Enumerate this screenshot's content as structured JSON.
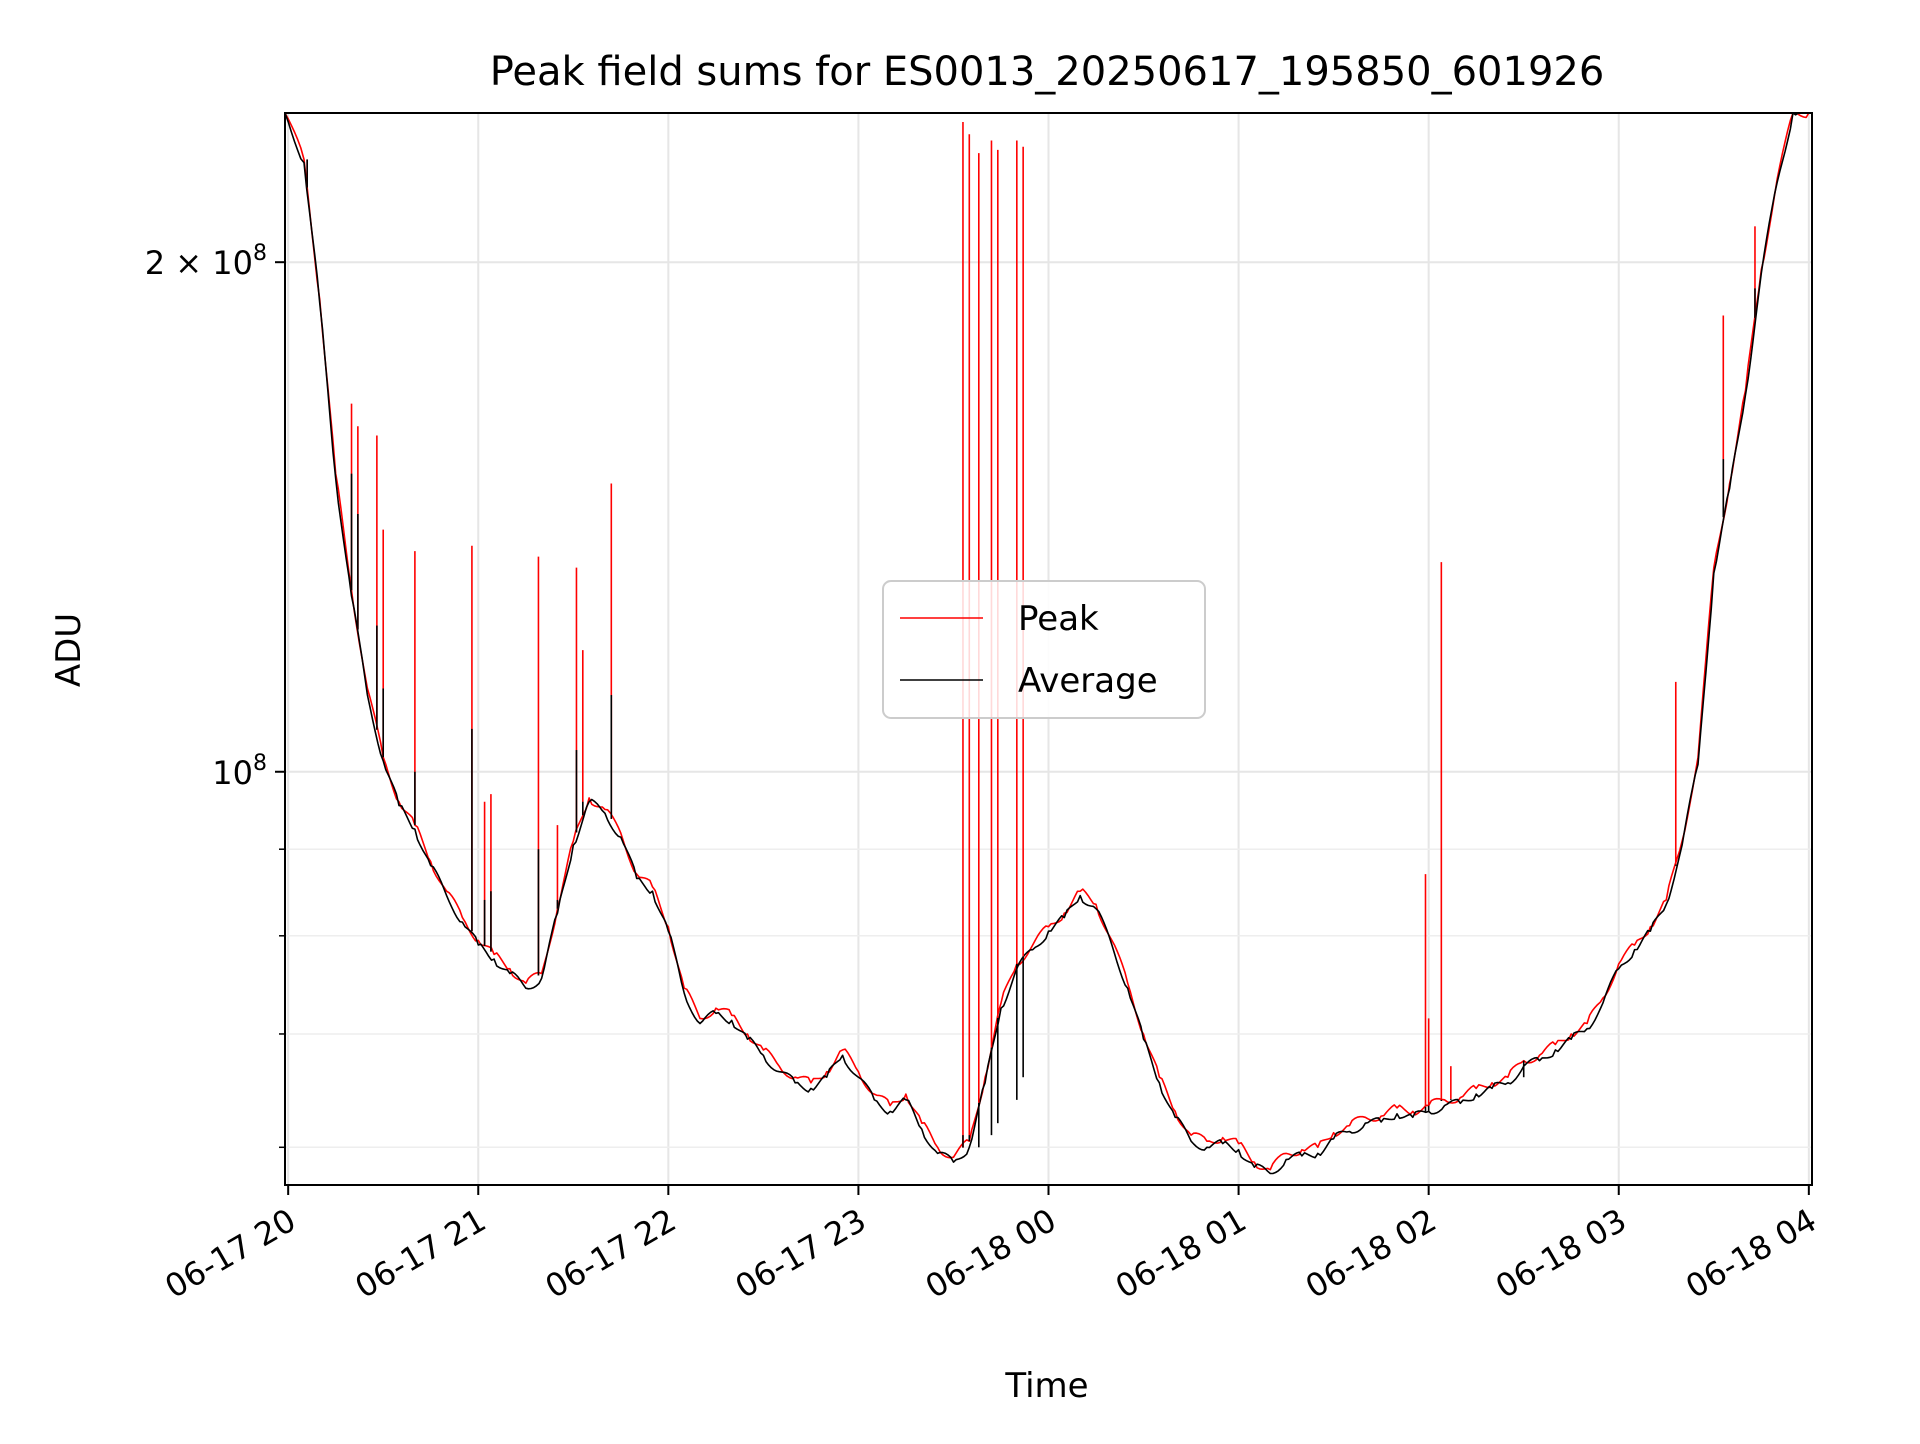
{
  "chart_data": {
    "type": "line",
    "title": "Peak field sums for ES0013_20250617_195850_601926",
    "xlabel": "Time",
    "ylabel": "ADU",
    "y_scale": "log",
    "ylim": [
      57000000,
      245000000
    ],
    "y_major_ticks": [
      {
        "value": 100000000,
        "label": "10",
        "exp": "8"
      },
      {
        "value": 200000000,
        "label": "2 × 10",
        "exp": "8"
      }
    ],
    "y_minor_ticks": [
      60000000,
      70000000,
      80000000,
      90000000
    ],
    "xlim": [
      "2025-06-17 19:59",
      "2025-06-18 04:01"
    ],
    "x_ticks": [
      {
        "value": "2025-06-17 20:00",
        "label": "06-17 20"
      },
      {
        "value": "2025-06-17 21:00",
        "label": "06-17 21"
      },
      {
        "value": "2025-06-17 22:00",
        "label": "06-17 22"
      },
      {
        "value": "2025-06-17 23:00",
        "label": "06-17 23"
      },
      {
        "value": "2025-06-18 00:00",
        "label": "06-18 00"
      },
      {
        "value": "2025-06-18 01:00",
        "label": "06-18 01"
      },
      {
        "value": "2025-06-18 02:00",
        "label": "06-18 02"
      },
      {
        "value": "2025-06-18 03:00",
        "label": "06-18 03"
      },
      {
        "value": "2025-06-18 04:00",
        "label": "06-18 04"
      }
    ],
    "grid": true,
    "legend_position": "center",
    "series": [
      {
        "name": "Peak",
        "color": "#ff0000",
        "x": [
          "2025-06-17 19:59",
          "2025-06-17 20:05",
          "2025-06-17 20:10",
          "2025-06-17 20:15",
          "2025-06-17 20:20",
          "2025-06-17 20:25",
          "2025-06-17 20:30",
          "2025-06-17 20:35",
          "2025-06-17 20:40",
          "2025-06-17 20:45",
          "2025-06-17 20:50",
          "2025-06-17 20:55",
          "2025-06-17 21:00",
          "2025-06-17 21:05",
          "2025-06-17 21:10",
          "2025-06-17 21:15",
          "2025-06-17 21:20",
          "2025-06-17 21:25",
          "2025-06-17 21:30",
          "2025-06-17 21:35",
          "2025-06-17 21:40",
          "2025-06-17 21:45",
          "2025-06-17 21:50",
          "2025-06-17 21:55",
          "2025-06-17 22:00",
          "2025-06-17 22:05",
          "2025-06-17 22:10",
          "2025-06-17 22:15",
          "2025-06-17 22:20",
          "2025-06-17 22:25",
          "2025-06-17 22:30",
          "2025-06-17 22:35",
          "2025-06-17 22:40",
          "2025-06-17 22:45",
          "2025-06-17 22:50",
          "2025-06-17 22:55",
          "2025-06-17 23:00",
          "2025-06-17 23:05",
          "2025-06-17 23:10",
          "2025-06-17 23:15",
          "2025-06-17 23:20",
          "2025-06-17 23:25",
          "2025-06-17 23:30",
          "2025-06-17 23:35",
          "2025-06-17 23:40",
          "2025-06-17 23:45",
          "2025-06-17 23:50",
          "2025-06-17 23:55",
          "2025-06-18 00:00",
          "2025-06-18 00:05",
          "2025-06-18 00:10",
          "2025-06-18 00:15",
          "2025-06-18 00:20",
          "2025-06-18 00:25",
          "2025-06-18 00:30",
          "2025-06-18 00:35",
          "2025-06-18 00:40",
          "2025-06-18 00:45",
          "2025-06-18 00:50",
          "2025-06-18 00:55",
          "2025-06-18 01:00",
          "2025-06-18 01:05",
          "2025-06-18 01:10",
          "2025-06-18 01:15",
          "2025-06-18 01:20",
          "2025-06-18 01:25",
          "2025-06-18 01:30",
          "2025-06-18 01:35",
          "2025-06-18 01:40",
          "2025-06-18 01:45",
          "2025-06-18 01:50",
          "2025-06-18 01:55",
          "2025-06-18 02:00",
          "2025-06-18 02:05",
          "2025-06-18 02:10",
          "2025-06-18 02:15",
          "2025-06-18 02:20",
          "2025-06-18 02:25",
          "2025-06-18 02:30",
          "2025-06-18 02:35",
          "2025-06-18 02:40",
          "2025-06-18 02:45",
          "2025-06-18 02:50",
          "2025-06-18 02:55",
          "2025-06-18 03:00",
          "2025-06-18 03:05",
          "2025-06-18 03:10",
          "2025-06-18 03:15",
          "2025-06-18 03:20",
          "2025-06-18 03:25",
          "2025-06-18 03:30",
          "2025-06-18 03:35",
          "2025-06-18 03:40",
          "2025-06-18 03:45",
          "2025-06-18 03:50",
          "2025-06-18 03:55",
          "2025-06-18 04:00"
        ],
        "y": [
          245000000,
          230000000,
          190000000,
          150000000,
          128000000,
          112000000,
          102000000,
          96000000,
          93000000,
          88500000,
          85000000,
          82000000,
          79500000,
          78000000,
          76500000,
          75000000,
          76000000,
          83000000,
          91000000,
          96500000,
          95000000,
          92000000,
          87000000,
          85500000,
          81000000,
          74500000,
          71500000,
          72500000,
          71800000,
          70000000,
          68500000,
          67000000,
          66000000,
          65500000,
          66500000,
          68500000,
          66500000,
          64500000,
          63500000,
          64500000,
          62000000,
          60000000,
          59200000,
          60500000,
          66000000,
          73000000,
          77000000,
          79000000,
          81000000,
          82500000,
          85000000,
          83500000,
          79500000,
          75000000,
          70000000,
          66000000,
          63000000,
          61000000,
          60500000,
          60800000,
          60300000,
          58800000,
          58200000,
          59500000,
          59800000,
          60000000,
          61200000,
          61800000,
          62500000,
          62600000,
          63300000,
          63000000,
          63500000,
          64000000,
          64200000,
          65000000,
          65500000,
          66000000,
          67500000,
          68000000,
          69000000,
          70000000,
          71000000,
          73500000,
          77000000,
          79000000,
          81000000,
          84000000,
          91000000,
          102000000,
          132000000,
          148000000,
          168000000,
          198000000,
          224000000,
          245000000,
          245000000
        ]
      },
      {
        "name": "Average",
        "color": "#000000",
        "x": [
          "2025-06-17 19:59",
          "2025-06-17 20:05",
          "2025-06-17 20:10",
          "2025-06-17 20:15",
          "2025-06-17 20:20",
          "2025-06-17 20:25",
          "2025-06-17 20:30",
          "2025-06-17 20:35",
          "2025-06-17 20:40",
          "2025-06-17 20:45",
          "2025-06-17 20:50",
          "2025-06-17 20:55",
          "2025-06-17 21:00",
          "2025-06-17 21:05",
          "2025-06-17 21:10",
          "2025-06-17 21:15",
          "2025-06-17 21:20",
          "2025-06-17 21:25",
          "2025-06-17 21:30",
          "2025-06-17 21:35",
          "2025-06-17 21:40",
          "2025-06-17 21:45",
          "2025-06-17 21:50",
          "2025-06-17 21:55",
          "2025-06-17 22:00",
          "2025-06-17 22:05",
          "2025-06-17 22:10",
          "2025-06-17 22:15",
          "2025-06-17 22:20",
          "2025-06-17 22:25",
          "2025-06-17 22:30",
          "2025-06-17 22:35",
          "2025-06-17 22:40",
          "2025-06-17 22:45",
          "2025-06-17 22:50",
          "2025-06-17 22:55",
          "2025-06-17 23:00",
          "2025-06-17 23:05",
          "2025-06-17 23:10",
          "2025-06-17 23:15",
          "2025-06-17 23:20",
          "2025-06-17 23:25",
          "2025-06-17 23:30",
          "2025-06-17 23:35",
          "2025-06-17 23:40",
          "2025-06-17 23:45",
          "2025-06-17 23:50",
          "2025-06-17 23:55",
          "2025-06-18 00:00",
          "2025-06-18 00:05",
          "2025-06-18 00:10",
          "2025-06-18 00:15",
          "2025-06-18 00:20",
          "2025-06-18 00:25",
          "2025-06-18 00:30",
          "2025-06-18 00:35",
          "2025-06-18 00:40",
          "2025-06-18 00:45",
          "2025-06-18 00:50",
          "2025-06-18 00:55",
          "2025-06-18 01:00",
          "2025-06-18 01:05",
          "2025-06-18 01:10",
          "2025-06-18 01:15",
          "2025-06-18 01:20",
          "2025-06-18 01:25",
          "2025-06-18 01:30",
          "2025-06-18 01:35",
          "2025-06-18 01:40",
          "2025-06-18 01:45",
          "2025-06-18 01:50",
          "2025-06-18 01:55",
          "2025-06-18 02:00",
          "2025-06-18 02:05",
          "2025-06-18 02:10",
          "2025-06-18 02:15",
          "2025-06-18 02:20",
          "2025-06-18 02:25",
          "2025-06-18 02:30",
          "2025-06-18 02:35",
          "2025-06-18 02:40",
          "2025-06-18 02:45",
          "2025-06-18 02:50",
          "2025-06-18 02:55",
          "2025-06-18 03:00",
          "2025-06-18 03:05",
          "2025-06-18 03:10",
          "2025-06-18 03:15",
          "2025-06-18 03:20",
          "2025-06-18 03:25",
          "2025-06-18 03:30",
          "2025-06-18 03:35",
          "2025-06-18 03:40",
          "2025-06-18 03:45",
          "2025-06-18 03:50",
          "2025-06-18 03:55",
          "2025-06-18 04:00"
        ],
        "y": [
          245000000,
          229000000,
          189000000,
          149000000,
          127000000,
          111000000,
          101500000,
          95500000,
          92500000,
          88000000,
          84500000,
          81500000,
          79000000,
          77500000,
          76000000,
          74500000,
          75500000,
          82500000,
          90500000,
          96000000,
          94500000,
          91500000,
          86500000,
          85000000,
          80500000,
          74000000,
          71000000,
          72000000,
          71300000,
          69500000,
          68000000,
          66500000,
          65500000,
          65000000,
          66000000,
          68000000,
          66000000,
          64000000,
          63000000,
          64000000,
          61500000,
          59500000,
          58800000,
          60000000,
          65500000,
          72500000,
          76500000,
          78500000,
          80500000,
          82000000,
          84500000,
          83000000,
          79000000,
          74500000,
          69500000,
          65500000,
          62500000,
          60500000,
          60000000,
          60300000,
          59800000,
          58400000,
          57900000,
          59000000,
          59300000,
          59500000,
          60700000,
          61300000,
          62000000,
          62100000,
          62800000,
          62500000,
          63000000,
          63500000,
          63700000,
          64500000,
          65000000,
          65500000,
          67000000,
          67500000,
          68500000,
          69500000,
          70500000,
          73000000,
          76500000,
          78500000,
          80500000,
          83500000,
          90500000,
          101000000,
          131000000,
          147000000,
          167000000,
          197000000,
          223000000,
          245000000,
          245000000
        ]
      }
    ],
    "spikes": [
      {
        "x": "2025-06-17 20:06",
        "peak": 230000000,
        "avg": 230000000
      },
      {
        "x": "2025-06-17 20:20",
        "peak": 165000000,
        "avg": 150000000
      },
      {
        "x": "2025-06-17 20:22",
        "peak": 160000000,
        "avg": 142000000
      },
      {
        "x": "2025-06-17 20:28",
        "peak": 158000000,
        "avg": 122000000
      },
      {
        "x": "2025-06-17 20:30",
        "peak": 139000000,
        "avg": 112000000
      },
      {
        "x": "2025-06-17 20:40",
        "peak": 135000000,
        "avg": 100000000
      },
      {
        "x": "2025-06-17 20:58",
        "peak": 136000000,
        "avg": 106000000
      },
      {
        "x": "2025-06-17 21:02",
        "peak": 96000000,
        "avg": 84000000
      },
      {
        "x": "2025-06-17 21:04",
        "peak": 97000000,
        "avg": 85000000
      },
      {
        "x": "2025-06-17 21:19",
        "peak": 134000000,
        "avg": 90000000
      },
      {
        "x": "2025-06-17 21:25",
        "peak": 93000000,
        "avg": 84000000
      },
      {
        "x": "2025-06-17 21:31",
        "peak": 132000000,
        "avg": 103000000
      },
      {
        "x": "2025-06-17 21:33",
        "peak": 118000000,
        "avg": 96000000
      },
      {
        "x": "2025-06-17 21:42",
        "peak": 148000000,
        "avg": 111000000
      },
      {
        "x": "2025-06-17 23:33",
        "peak": 242000000,
        "avg": 61000000
      },
      {
        "x": "2025-06-17 23:35",
        "peak": 238000000,
        "avg": 61000000
      },
      {
        "x": "2025-06-17 23:38",
        "peak": 232000000,
        "avg": 60000000
      },
      {
        "x": "2025-06-17 23:42",
        "peak": 236000000,
        "avg": 61000000
      },
      {
        "x": "2025-06-17 23:44",
        "peak": 233000000,
        "avg": 62000000
      },
      {
        "x": "2025-06-17 23:50",
        "peak": 236000000,
        "avg": 64000000
      },
      {
        "x": "2025-06-17 23:52",
        "peak": 234000000,
        "avg": 66000000
      },
      {
        "x": "2025-06-18 01:59",
        "peak": 87000000,
        "avg": 63000000
      },
      {
        "x": "2025-06-18 02:00",
        "peak": 71500000,
        "avg": 63000000
      },
      {
        "x": "2025-06-18 02:04",
        "peak": 133000000,
        "avg": 64000000
      },
      {
        "x": "2025-06-18 02:07",
        "peak": 67000000,
        "avg": 64000000
      },
      {
        "x": "2025-06-18 02:30",
        "peak": 67500000,
        "avg": 66000000
      },
      {
        "x": "2025-06-18 03:18",
        "peak": 113000000,
        "avg": 88000000
      },
      {
        "x": "2025-06-18 03:33",
        "peak": 186000000,
        "avg": 153000000
      },
      {
        "x": "2025-06-18 03:43",
        "peak": 210000000,
        "avg": 193000000
      }
    ]
  }
}
